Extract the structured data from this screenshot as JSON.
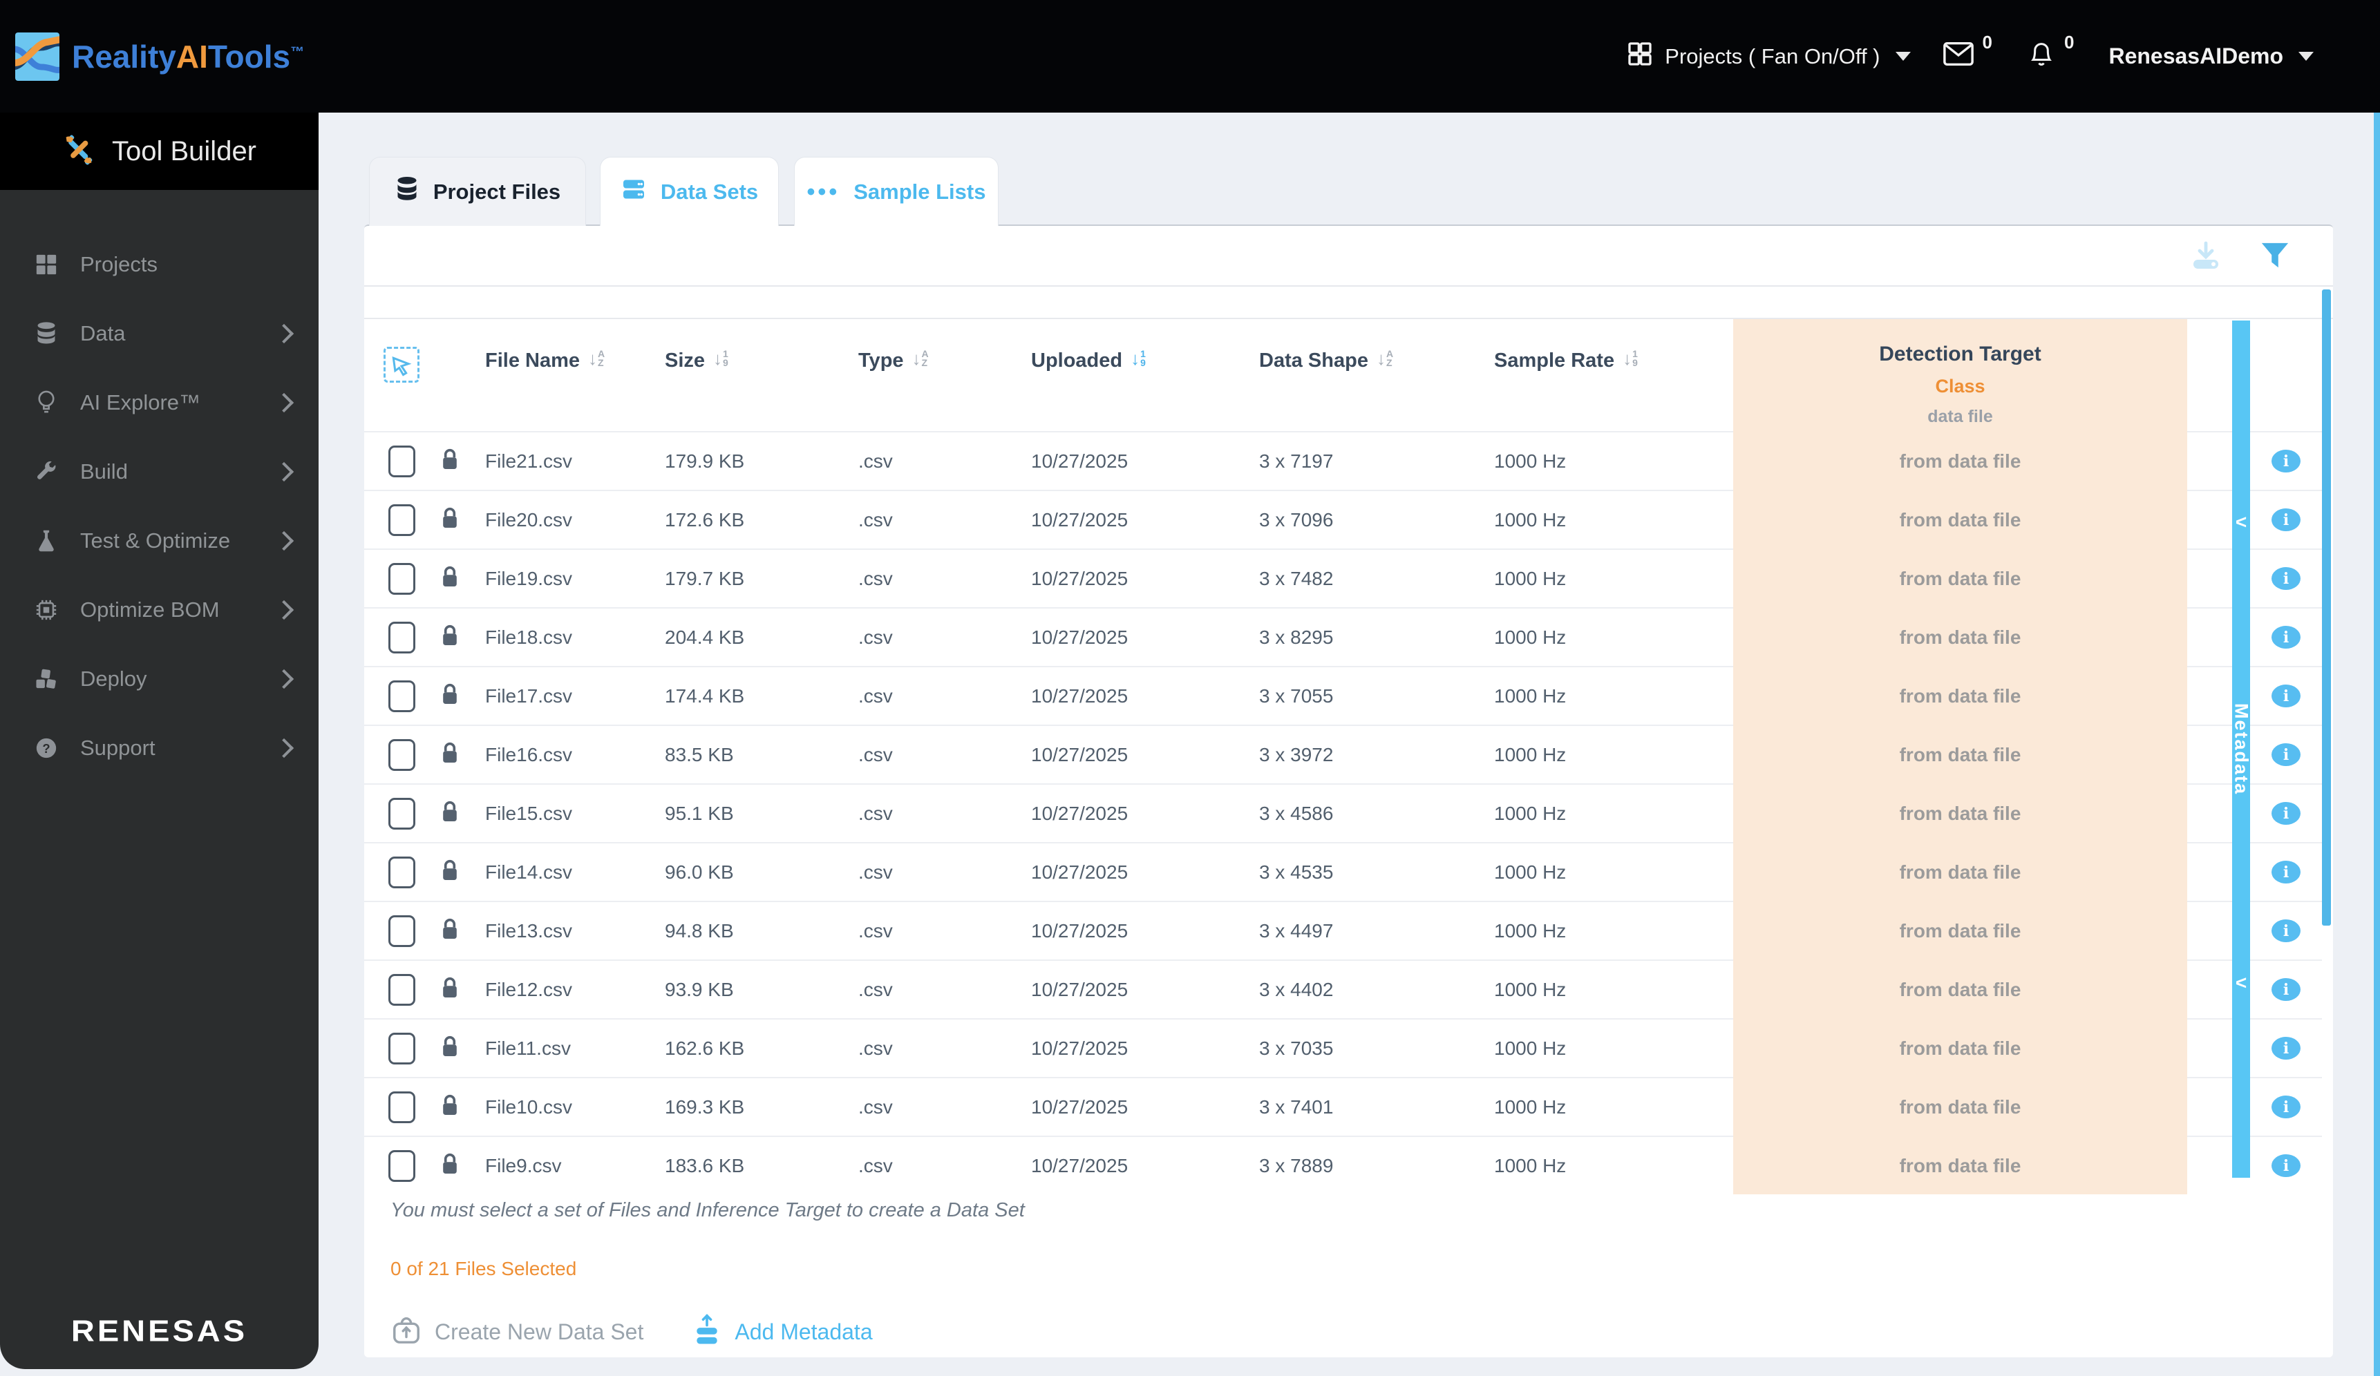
{
  "topbar": {
    "brand": {
      "part1": "Reality",
      "part2": "AI",
      "part3": "Tools",
      "tm": "™"
    },
    "project_selector_label": "Projects ( Fan On/Off )",
    "mail_count": "0",
    "notification_count": "0",
    "user_name": "RenesasAIDemo"
  },
  "sidebar": {
    "title": "Tool Builder",
    "items": [
      {
        "label": "Projects",
        "icon": "grid-icon",
        "chevron": false
      },
      {
        "label": "Data",
        "icon": "database-icon",
        "chevron": true
      },
      {
        "label": "AI Explore™",
        "icon": "lightbulb-icon",
        "chevron": true
      },
      {
        "label": "Build",
        "icon": "wrench-icon",
        "chevron": true
      },
      {
        "label": "Test & Optimize",
        "icon": "flask-icon",
        "chevron": true
      },
      {
        "label": "Optimize BOM",
        "icon": "chip-icon",
        "chevron": true
      },
      {
        "label": "Deploy",
        "icon": "cubes-icon",
        "chevron": true
      },
      {
        "label": "Support",
        "icon": "question-icon",
        "chevron": true
      }
    ],
    "brand_logo": "RENESAS"
  },
  "tabs": [
    {
      "label": "Project Files",
      "icon": "database-dark-icon",
      "active": true
    },
    {
      "label": "Data Sets",
      "icon": "server-icon",
      "active": false
    },
    {
      "label": "Sample Lists",
      "icon": "dots-icon",
      "active": false
    }
  ],
  "table": {
    "columns": [
      {
        "label": "File Name",
        "sort": "alpha",
        "active": false
      },
      {
        "label": "Size",
        "sort": "numeric",
        "active": false
      },
      {
        "label": "Type",
        "sort": "alpha",
        "active": false
      },
      {
        "label": "Uploaded",
        "sort": "numeric",
        "active": true
      },
      {
        "label": "Data Shape",
        "sort": "alpha",
        "active": false
      },
      {
        "label": "Sample Rate",
        "sort": "numeric",
        "active": false
      }
    ],
    "sort_glyphs": {
      "alpha": [
        "A",
        "Z"
      ],
      "numeric": [
        "1",
        "9"
      ],
      "arrow": "↓"
    },
    "detection_target": {
      "title": "Detection Target",
      "class_label": "Class",
      "source": "data file"
    },
    "metadata_panel_label": "Metadata",
    "collapse_glyph": "‹",
    "info_glyph": "i",
    "rows": [
      {
        "file_name": "File21.csv",
        "size": "179.9 KB",
        "type": ".csv",
        "uploaded": "10/27/2025",
        "data_shape": "3 x 7197",
        "sample_rate": "1000 Hz",
        "detection_target": "from data file"
      },
      {
        "file_name": "File20.csv",
        "size": "172.6 KB",
        "type": ".csv",
        "uploaded": "10/27/2025",
        "data_shape": "3 x 7096",
        "sample_rate": "1000 Hz",
        "detection_target": "from data file"
      },
      {
        "file_name": "File19.csv",
        "size": "179.7 KB",
        "type": ".csv",
        "uploaded": "10/27/2025",
        "data_shape": "3 x 7482",
        "sample_rate": "1000 Hz",
        "detection_target": "from data file"
      },
      {
        "file_name": "File18.csv",
        "size": "204.4 KB",
        "type": ".csv",
        "uploaded": "10/27/2025",
        "data_shape": "3 x 8295",
        "sample_rate": "1000 Hz",
        "detection_target": "from data file"
      },
      {
        "file_name": "File17.csv",
        "size": "174.4 KB",
        "type": ".csv",
        "uploaded": "10/27/2025",
        "data_shape": "3 x 7055",
        "sample_rate": "1000 Hz",
        "detection_target": "from data file"
      },
      {
        "file_name": "File16.csv",
        "size": "83.5 KB",
        "type": ".csv",
        "uploaded": "10/27/2025",
        "data_shape": "3 x 3972",
        "sample_rate": "1000 Hz",
        "detection_target": "from data file"
      },
      {
        "file_name": "File15.csv",
        "size": "95.1 KB",
        "type": ".csv",
        "uploaded": "10/27/2025",
        "data_shape": "3 x 4586",
        "sample_rate": "1000 Hz",
        "detection_target": "from data file"
      },
      {
        "file_name": "File14.csv",
        "size": "96.0 KB",
        "type": ".csv",
        "uploaded": "10/27/2025",
        "data_shape": "3 x 4535",
        "sample_rate": "1000 Hz",
        "detection_target": "from data file"
      },
      {
        "file_name": "File13.csv",
        "size": "94.8 KB",
        "type": ".csv",
        "uploaded": "10/27/2025",
        "data_shape": "3 x 4497",
        "sample_rate": "1000 Hz",
        "detection_target": "from data file"
      },
      {
        "file_name": "File12.csv",
        "size": "93.9 KB",
        "type": ".csv",
        "uploaded": "10/27/2025",
        "data_shape": "3 x 4402",
        "sample_rate": "1000 Hz",
        "detection_target": "from data file"
      },
      {
        "file_name": "File11.csv",
        "size": "162.6 KB",
        "type": ".csv",
        "uploaded": "10/27/2025",
        "data_shape": "3 x 7035",
        "sample_rate": "1000 Hz",
        "detection_target": "from data file"
      },
      {
        "file_name": "File10.csv",
        "size": "169.3 KB",
        "type": ".csv",
        "uploaded": "10/27/2025",
        "data_shape": "3 x 7401",
        "sample_rate": "1000 Hz",
        "detection_target": "from data file"
      },
      {
        "file_name": "File9.csv",
        "size": "183.6 KB",
        "type": ".csv",
        "uploaded": "10/27/2025",
        "data_shape": "3 x 7889",
        "sample_rate": "1000 Hz",
        "detection_target": "from data file"
      }
    ]
  },
  "footer": {
    "notice": "You must select a set of Files and Inference Target to create a Data Set",
    "selection_status": "0 of 21 Files Selected",
    "create_data_set_label": "Create New Data Set",
    "add_metadata_label": "Add Metadata"
  },
  "colors": {
    "accent_blue": "#4cb9ee",
    "metadata_bar_blue": "#58c6f4",
    "scrollbar_blue": "#4fb6e8",
    "orange": "#ee8f35",
    "detection_peach": "#fbe9d8",
    "sidebar_gray": "#2b2d2e",
    "header_navy": "#3b4a5c"
  }
}
